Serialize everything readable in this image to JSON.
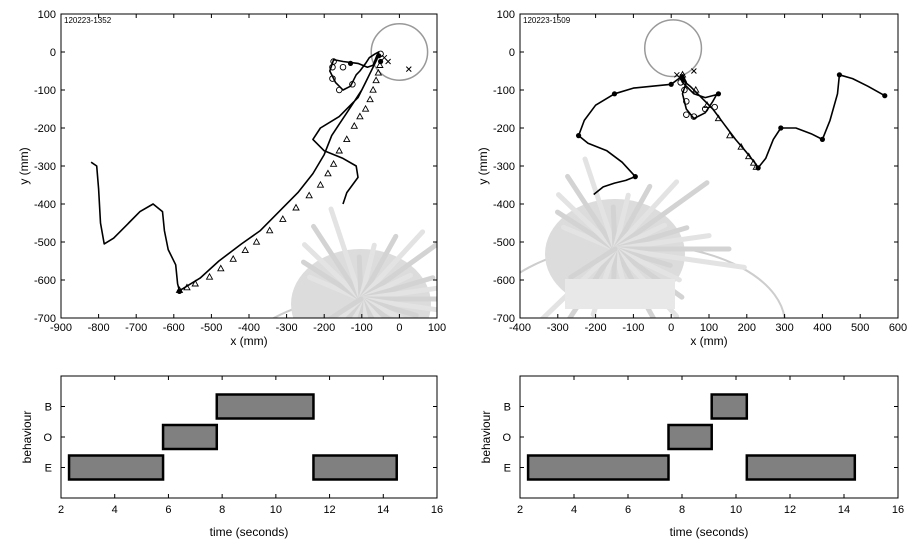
{
  "chart_data": [
    {
      "type": "line",
      "id_label": "120223-1352",
      "xlabel": "x (mm)",
      "ylabel": "y (mm)",
      "xlim": [
        -900,
        100
      ],
      "ylim": [
        -700,
        100
      ],
      "xticks": [
        -900,
        -800,
        -700,
        -600,
        -500,
        -400,
        -300,
        -200,
        -100,
        0,
        100
      ],
      "yticks": [
        -700,
        -600,
        -500,
        -400,
        -300,
        -200,
        -100,
        0,
        100
      ],
      "target_circle": {
        "cx": 0,
        "cy": 0,
        "r": 75
      },
      "path": [
        [
          -820,
          -290
        ],
        [
          -805,
          -300
        ],
        [
          -800,
          -360
        ],
        [
          -795,
          -450
        ],
        [
          -785,
          -505
        ],
        [
          -760,
          -490
        ],
        [
          -720,
          -450
        ],
        [
          -690,
          -420
        ],
        [
          -655,
          -400
        ],
        [
          -630,
          -420
        ],
        [
          -625,
          -470
        ],
        [
          -615,
          -520
        ],
        [
          -595,
          -560
        ],
        [
          -590,
          -610
        ],
        [
          -585,
          -628
        ],
        [
          -575,
          -622
        ],
        [
          -555,
          -610
        ],
        [
          -530,
          -595
        ],
        [
          -480,
          -550
        ],
        [
          -420,
          -505
        ],
        [
          -370,
          -470
        ],
        [
          -320,
          -420
        ],
        [
          -270,
          -370
        ],
        [
          -230,
          -320
        ],
        [
          -200,
          -270
        ],
        [
          -180,
          -220
        ],
        [
          -160,
          -190
        ],
        [
          -140,
          -160
        ],
        [
          -120,
          -130
        ],
        [
          -100,
          -100
        ],
        [
          -90,
          -80
        ],
        [
          -80,
          -60
        ],
        [
          -70,
          -40
        ],
        [
          -60,
          -20
        ],
        [
          -55,
          -5
        ],
        [
          -60,
          -10
        ],
        [
          -70,
          -35
        ],
        [
          -85,
          -40
        ],
        [
          -110,
          -30
        ],
        [
          -150,
          -25
        ],
        [
          -175,
          -20
        ],
        [
          -185,
          -50
        ],
        [
          -170,
          -80
        ],
        [
          -150,
          -100
        ],
        [
          -130,
          -90
        ],
        [
          -115,
          -60
        ],
        [
          -105,
          -50
        ],
        [
          -90,
          -30
        ],
        [
          -80,
          -15
        ],
        [
          -65,
          -5
        ],
        [
          -55,
          0
        ],
        [
          -60,
          -20
        ],
        [
          -80,
          -60
        ],
        [
          -110,
          -120
        ],
        [
          -160,
          -170
        ],
        [
          -210,
          -200
        ],
        [
          -230,
          -230
        ],
        [
          -200,
          -260
        ],
        [
          -150,
          -280
        ],
        [
          -115,
          -300
        ],
        [
          -110,
          -330
        ],
        [
          -140,
          -370
        ],
        [
          -150,
          -400
        ]
      ],
      "triangles": [
        [
          -585,
          -627
        ],
        [
          -565,
          -620
        ],
        [
          -543,
          -610
        ],
        [
          -505,
          -592
        ],
        [
          -475,
          -570
        ],
        [
          -442,
          -545
        ],
        [
          -410,
          -522
        ],
        [
          -380,
          -500
        ],
        [
          -345,
          -470
        ],
        [
          -310,
          -440
        ],
        [
          -275,
          -410
        ],
        [
          -240,
          -378
        ],
        [
          -210,
          -350
        ],
        [
          -190,
          -320
        ],
        [
          -175,
          -295
        ],
        [
          -160,
          -260
        ],
        [
          -140,
          -230
        ],
        [
          -120,
          -195
        ],
        [
          -105,
          -170
        ],
        [
          -90,
          -150
        ],
        [
          -78,
          -125
        ],
        [
          -70,
          -100
        ],
        [
          -62,
          -75
        ],
        [
          -56,
          -55
        ],
        [
          -52,
          -35
        ]
      ],
      "circles": [
        [
          -160,
          -100
        ],
        [
          -178,
          -70
        ],
        [
          -178,
          -40
        ],
        [
          -150,
          -40
        ],
        [
          -125,
          -85
        ],
        [
          -175,
          -25
        ],
        [
          -50,
          -5
        ]
      ],
      "dots": [
        [
          -585,
          -630
        ],
        [
          -130,
          -30
        ],
        [
          -55,
          -10
        ],
        [
          -50,
          -25
        ]
      ],
      "crosses": [
        [
          -40,
          -15
        ],
        [
          -30,
          -25
        ],
        [
          25,
          -45
        ]
      ]
    },
    {
      "type": "line",
      "id_label": "120223-1509",
      "xlabel": "x (mm)",
      "ylabel": "y (mm)",
      "xlim": [
        -400,
        600
      ],
      "ylim": [
        -700,
        100
      ],
      "xticks": [
        -400,
        -300,
        -200,
        -100,
        0,
        100,
        200,
        300,
        400,
        500,
        600
      ],
      "yticks": [
        -700,
        -600,
        -500,
        -400,
        -300,
        -200,
        -100,
        0,
        100
      ],
      "target_circle": {
        "cx": 5,
        "cy": 10,
        "r": 75
      },
      "path": [
        [
          -205,
          -375
        ],
        [
          -180,
          -355
        ],
        [
          -150,
          -345
        ],
        [
          -120,
          -338
        ],
        [
          -95,
          -328
        ],
        [
          -130,
          -290
        ],
        [
          -170,
          -260
        ],
        [
          -220,
          -240
        ],
        [
          -245,
          -220
        ],
        [
          -230,
          -180
        ],
        [
          -200,
          -140
        ],
        [
          -150,
          -110
        ],
        [
          -100,
          -95
        ],
        [
          -50,
          -90
        ],
        [
          0,
          -85
        ],
        [
          20,
          -70
        ],
        [
          30,
          -60
        ],
        [
          40,
          -80
        ],
        [
          30,
          -110
        ],
        [
          40,
          -150
        ],
        [
          60,
          -175
        ],
        [
          90,
          -160
        ],
        [
          110,
          -130
        ],
        [
          120,
          -112
        ],
        [
          90,
          -120
        ],
        [
          60,
          -110
        ],
        [
          30,
          -80
        ],
        [
          25,
          -70
        ],
        [
          50,
          -90
        ],
        [
          80,
          -120
        ],
        [
          110,
          -150
        ],
        [
          140,
          -190
        ],
        [
          170,
          -230
        ],
        [
          200,
          -265
        ],
        [
          220,
          -290
        ],
        [
          230,
          -305
        ],
        [
          250,
          -280
        ],
        [
          270,
          -230
        ],
        [
          290,
          -200
        ],
        [
          330,
          -200
        ],
        [
          370,
          -215
        ],
        [
          400,
          -230
        ],
        [
          420,
          -180
        ],
        [
          440,
          -110
        ],
        [
          445,
          -60
        ],
        [
          480,
          -70
        ],
        [
          520,
          -90
        ],
        [
          565,
          -115
        ]
      ],
      "triangles": [
        [
          30,
          -60
        ],
        [
          65,
          -100
        ],
        [
          95,
          -140
        ],
        [
          125,
          -175
        ],
        [
          155,
          -220
        ],
        [
          185,
          -250
        ],
        [
          205,
          -275
        ],
        [
          218,
          -292
        ],
        [
          225,
          -303
        ]
      ],
      "circles": [
        [
          25,
          -80
        ],
        [
          35,
          -100
        ],
        [
          40,
          -165
        ],
        [
          60,
          -170
        ],
        [
          90,
          -150
        ],
        [
          115,
          -145
        ],
        [
          40,
          -130
        ]
      ],
      "dots": [
        [
          -95,
          -328
        ],
        [
          -245,
          -220
        ],
        [
          -150,
          -110
        ],
        [
          0,
          -85
        ],
        [
          125,
          -110
        ],
        [
          230,
          -305
        ],
        [
          290,
          -200
        ],
        [
          400,
          -230
        ],
        [
          445,
          -60
        ],
        [
          565,
          -115
        ],
        [
          30,
          -70
        ]
      ],
      "crosses": [
        [
          15,
          -60
        ],
        [
          30,
          -65
        ],
        [
          60,
          -50
        ]
      ]
    },
    {
      "type": "bar",
      "xlabel": "time (seconds)",
      "ylabel": "behaviour",
      "xlim": [
        2,
        16
      ],
      "xticks": [
        2,
        4,
        6,
        8,
        10,
        12,
        14,
        16
      ],
      "categories": [
        "E",
        "O",
        "B"
      ],
      "segments": [
        {
          "behaviour": "E",
          "start": 2.3,
          "end": 5.8
        },
        {
          "behaviour": "O",
          "start": 5.8,
          "end": 7.8
        },
        {
          "behaviour": "B",
          "start": 7.8,
          "end": 11.4
        },
        {
          "behaviour": "E",
          "start": 11.4,
          "end": 14.5
        }
      ]
    },
    {
      "type": "bar",
      "xlabel": "time (seconds)",
      "ylabel": "behaviour",
      "xlim": [
        2,
        16
      ],
      "xticks": [
        2,
        4,
        6,
        8,
        10,
        12,
        14,
        16
      ],
      "categories": [
        "E",
        "O",
        "B"
      ],
      "segments": [
        {
          "behaviour": "E",
          "start": 2.3,
          "end": 7.5
        },
        {
          "behaviour": "O",
          "start": 7.5,
          "end": 9.1
        },
        {
          "behaviour": "B",
          "start": 9.1,
          "end": 10.4
        },
        {
          "behaviour": "E",
          "start": 10.4,
          "end": 14.4
        }
      ]
    }
  ],
  "colors": {
    "bar_fill": "#808080",
    "target_circle": "#999999",
    "background_photo": "#d9d9d9"
  }
}
